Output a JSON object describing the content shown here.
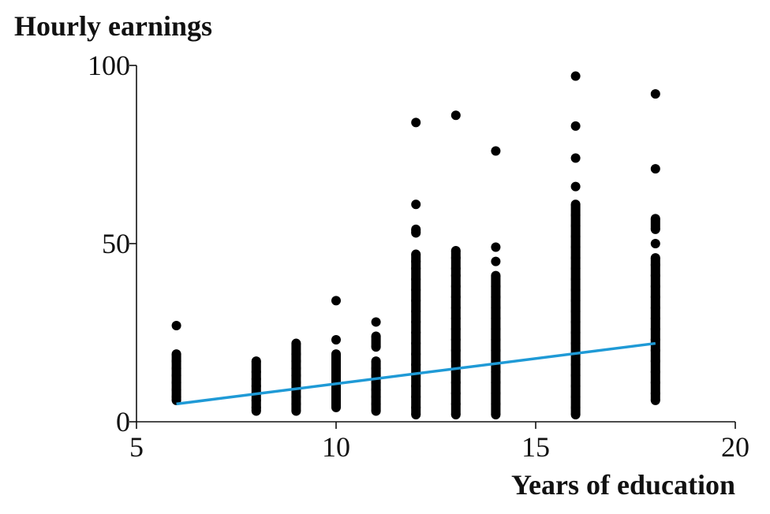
{
  "chart_data": {
    "type": "scatter",
    "title": "",
    "ylabel": "Hourly earnings",
    "xlabel": "Years of education",
    "xlim": [
      5,
      20
    ],
    "ylim": [
      0,
      100
    ],
    "x_ticks": [
      "5",
      "10",
      "15",
      "20"
    ],
    "y_ticks": [
      "0",
      "50",
      "100"
    ],
    "grid": false,
    "colors": {
      "points": "#000000",
      "regression_line": "#1f9ad6",
      "axis": "#111111"
    },
    "points": [
      {
        "x": 6,
        "y": 27
      },
      {
        "x": 6,
        "y": 19
      },
      {
        "x": 6,
        "y": 17
      },
      {
        "x": 6,
        "y": 15
      },
      {
        "x": 6,
        "y": 13
      },
      {
        "x": 6,
        "y": 11
      },
      {
        "x": 6,
        "y": 9
      },
      {
        "x": 6,
        "y": 7
      },
      {
        "x": 6,
        "y": 6
      },
      {
        "x": 8,
        "y": 17
      },
      {
        "x": 8,
        "y": 14
      },
      {
        "x": 8,
        "y": 12
      },
      {
        "x": 8,
        "y": 10
      },
      {
        "x": 8,
        "y": 8
      },
      {
        "x": 8,
        "y": 6
      },
      {
        "x": 8,
        "y": 4
      },
      {
        "x": 8,
        "y": 3
      },
      {
        "x": 9,
        "y": 22
      },
      {
        "x": 9,
        "y": 19
      },
      {
        "x": 9,
        "y": 17
      },
      {
        "x": 9,
        "y": 15
      },
      {
        "x": 9,
        "y": 13
      },
      {
        "x": 9,
        "y": 11
      },
      {
        "x": 9,
        "y": 9
      },
      {
        "x": 9,
        "y": 7
      },
      {
        "x": 9,
        "y": 5
      },
      {
        "x": 9,
        "y": 3
      },
      {
        "x": 10,
        "y": 34
      },
      {
        "x": 10,
        "y": 23
      },
      {
        "x": 10,
        "y": 19
      },
      {
        "x": 10,
        "y": 16
      },
      {
        "x": 10,
        "y": 14
      },
      {
        "x": 10,
        "y": 12
      },
      {
        "x": 10,
        "y": 10
      },
      {
        "x": 10,
        "y": 8
      },
      {
        "x": 10,
        "y": 6
      },
      {
        "x": 10,
        "y": 4
      },
      {
        "x": 11,
        "y": 28
      },
      {
        "x": 11,
        "y": 24
      },
      {
        "x": 11,
        "y": 21
      },
      {
        "x": 11,
        "y": 17
      },
      {
        "x": 11,
        "y": 15
      },
      {
        "x": 11,
        "y": 13
      },
      {
        "x": 11,
        "y": 11
      },
      {
        "x": 11,
        "y": 9
      },
      {
        "x": 11,
        "y": 7
      },
      {
        "x": 11,
        "y": 5
      },
      {
        "x": 11,
        "y": 3
      },
      {
        "x": 12,
        "y": 84
      },
      {
        "x": 12,
        "y": 61
      },
      {
        "x": 12,
        "y": 54
      },
      {
        "x": 12,
        "y": 53
      },
      {
        "x": 12,
        "y": 47
      },
      {
        "x": 12,
        "y": 45
      },
      {
        "x": 12,
        "y": 43
      },
      {
        "x": 12,
        "y": 40
      },
      {
        "x": 12,
        "y": 37
      },
      {
        "x": 12,
        "y": 34
      },
      {
        "x": 12,
        "y": 31
      },
      {
        "x": 12,
        "y": 28
      },
      {
        "x": 12,
        "y": 25
      },
      {
        "x": 12,
        "y": 22
      },
      {
        "x": 12,
        "y": 19
      },
      {
        "x": 12,
        "y": 16
      },
      {
        "x": 12,
        "y": 13
      },
      {
        "x": 12,
        "y": 10
      },
      {
        "x": 12,
        "y": 7
      },
      {
        "x": 12,
        "y": 4
      },
      {
        "x": 12,
        "y": 2
      },
      {
        "x": 13,
        "y": 86
      },
      {
        "x": 13,
        "y": 48
      },
      {
        "x": 13,
        "y": 46
      },
      {
        "x": 13,
        "y": 43
      },
      {
        "x": 13,
        "y": 41
      },
      {
        "x": 13,
        "y": 38
      },
      {
        "x": 13,
        "y": 35
      },
      {
        "x": 13,
        "y": 32
      },
      {
        "x": 13,
        "y": 29
      },
      {
        "x": 13,
        "y": 26
      },
      {
        "x": 13,
        "y": 23
      },
      {
        "x": 13,
        "y": 20
      },
      {
        "x": 13,
        "y": 17
      },
      {
        "x": 13,
        "y": 14
      },
      {
        "x": 13,
        "y": 11
      },
      {
        "x": 13,
        "y": 8
      },
      {
        "x": 13,
        "y": 5
      },
      {
        "x": 13,
        "y": 2
      },
      {
        "x": 14,
        "y": 76
      },
      {
        "x": 14,
        "y": 49
      },
      {
        "x": 14,
        "y": 45
      },
      {
        "x": 14,
        "y": 41
      },
      {
        "x": 14,
        "y": 38
      },
      {
        "x": 14,
        "y": 35
      },
      {
        "x": 14,
        "y": 32
      },
      {
        "x": 14,
        "y": 29
      },
      {
        "x": 14,
        "y": 26
      },
      {
        "x": 14,
        "y": 23
      },
      {
        "x": 14,
        "y": 20
      },
      {
        "x": 14,
        "y": 17
      },
      {
        "x": 14,
        "y": 14
      },
      {
        "x": 14,
        "y": 11
      },
      {
        "x": 14,
        "y": 8
      },
      {
        "x": 14,
        "y": 5
      },
      {
        "x": 14,
        "y": 2
      },
      {
        "x": 16,
        "y": 97
      },
      {
        "x": 16,
        "y": 83
      },
      {
        "x": 16,
        "y": 74
      },
      {
        "x": 16,
        "y": 66
      },
      {
        "x": 16,
        "y": 61
      },
      {
        "x": 16,
        "y": 58
      },
      {
        "x": 16,
        "y": 55
      },
      {
        "x": 16,
        "y": 52
      },
      {
        "x": 16,
        "y": 49
      },
      {
        "x": 16,
        "y": 46
      },
      {
        "x": 16,
        "y": 43
      },
      {
        "x": 16,
        "y": 40
      },
      {
        "x": 16,
        "y": 37
      },
      {
        "x": 16,
        "y": 34
      },
      {
        "x": 16,
        "y": 31
      },
      {
        "x": 16,
        "y": 28
      },
      {
        "x": 16,
        "y": 25
      },
      {
        "x": 16,
        "y": 22
      },
      {
        "x": 16,
        "y": 19
      },
      {
        "x": 16,
        "y": 16
      },
      {
        "x": 16,
        "y": 13
      },
      {
        "x": 16,
        "y": 10
      },
      {
        "x": 16,
        "y": 7
      },
      {
        "x": 16,
        "y": 4
      },
      {
        "x": 16,
        "y": 2
      },
      {
        "x": 18,
        "y": 92
      },
      {
        "x": 18,
        "y": 71
      },
      {
        "x": 18,
        "y": 57
      },
      {
        "x": 18,
        "y": 54
      },
      {
        "x": 18,
        "y": 50
      },
      {
        "x": 18,
        "y": 46
      },
      {
        "x": 18,
        "y": 44
      },
      {
        "x": 18,
        "y": 41
      },
      {
        "x": 18,
        "y": 38
      },
      {
        "x": 18,
        "y": 35
      },
      {
        "x": 18,
        "y": 32
      },
      {
        "x": 18,
        "y": 29
      },
      {
        "x": 18,
        "y": 26
      },
      {
        "x": 18,
        "y": 23
      },
      {
        "x": 18,
        "y": 20
      },
      {
        "x": 18,
        "y": 17
      },
      {
        "x": 18,
        "y": 14
      },
      {
        "x": 18,
        "y": 11
      },
      {
        "x": 18,
        "y": 8
      },
      {
        "x": 18,
        "y": 6
      }
    ],
    "regression_line": {
      "x": [
        6,
        18
      ],
      "y": [
        5,
        22
      ]
    }
  }
}
